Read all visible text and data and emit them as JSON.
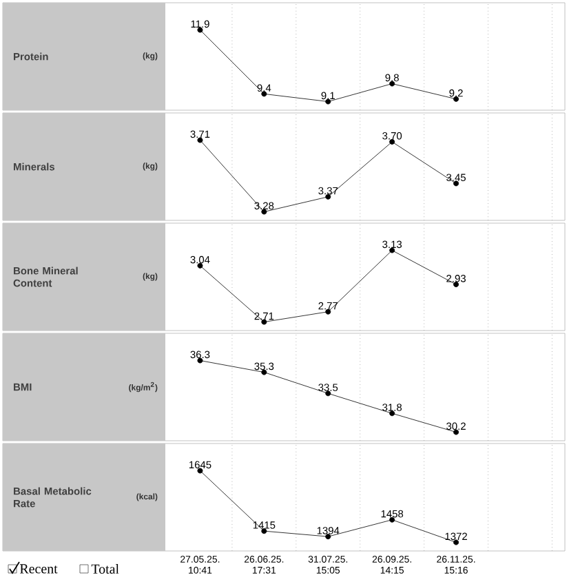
{
  "chart_data": [
    {
      "type": "line",
      "ylabel": "Protein",
      "annotations": [
        "(kg)"
      ],
      "categories": [
        null,
        null,
        null,
        null,
        null
      ],
      "values": [
        11.9,
        9.4,
        9.1,
        9.8,
        9.2
      ],
      "value_labels": [
        "11.9",
        "9.4",
        "9.1",
        "9.8",
        "9.2"
      ],
      "color": "#000000",
      "marker": "circle",
      "line_style": "solid",
      "grid": "x",
      "tick_labels": false
    },
    {
      "type": "line",
      "ylabel": "Minerals",
      "annotations": [
        "(kg)"
      ],
      "categories": [
        null,
        null,
        null,
        null,
        null
      ],
      "values": [
        3.71,
        3.28,
        3.37,
        3.7,
        3.45
      ],
      "value_labels": [
        "3.71",
        "3.28",
        "3.37",
        "3.70",
        "3.45"
      ],
      "color": "#000000",
      "marker": "circle",
      "line_style": "solid",
      "grid": "x",
      "tick_labels": false
    },
    {
      "type": "line",
      "ylabel": "Bone Mineral Content",
      "annotations": [
        "(kg)"
      ],
      "categories": [
        null,
        null,
        null,
        null,
        null
      ],
      "values": [
        3.04,
        2.71,
        2.77,
        3.13,
        2.93
      ],
      "value_labels": [
        "3.04",
        "2.71",
        "2.77",
        "3.13",
        "2.93"
      ],
      "color": "#000000",
      "marker": "circle",
      "line_style": "solid",
      "grid": "x",
      "tick_labels": false
    },
    {
      "type": "line",
      "ylabel": "BMI",
      "annotations": [
        "(kg/m$^{2}$)"
      ],
      "categories": [
        null,
        null,
        null,
        null,
        null
      ],
      "values": [
        36.3,
        35.3,
        33.5,
        31.8,
        30.2
      ],
      "value_labels": [
        "36.3",
        "35.3",
        "33.5",
        "31.8",
        "30.2"
      ],
      "color": "#000000",
      "marker": "circle",
      "line_style": "solid",
      "grid": "x",
      "tick_labels": false
    },
    {
      "type": "line",
      "ylabel": "Basal Metabolic Rate",
      "annotations": [
        "(kcal)",
        "Recent",
        "Total"
      ],
      "categories": [
        "27.05.25. 10:41",
        "26.06.25. 17:31",
        "31.07.25. 15:05",
        "26.09.25. 14:15",
        "26.11.25. 15:16"
      ],
      "values": [
        1645,
        1415,
        1394,
        1458,
        1372
      ],
      "value_labels": [
        "1645",
        "1415",
        "1394",
        "1458",
        "1372"
      ],
      "color": "#000000",
      "marker": "circle",
      "line_style": "solid",
      "grid": "x",
      "tick_labels": "x"
    }
  ]
}
